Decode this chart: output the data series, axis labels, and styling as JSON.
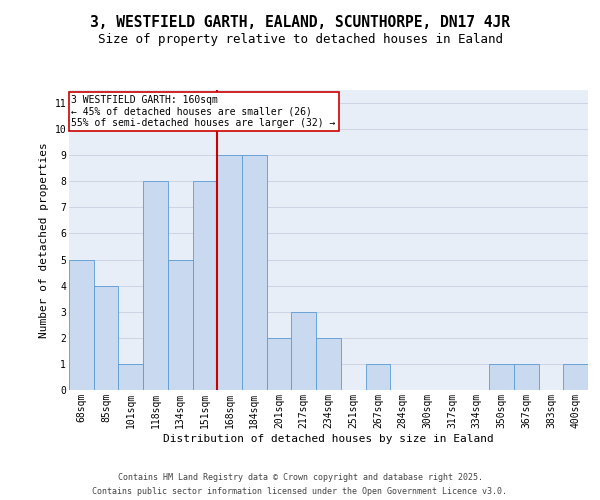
{
  "title1": "3, WESTFIELD GARTH, EALAND, SCUNTHORPE, DN17 4JR",
  "title2": "Size of property relative to detached houses in Ealand",
  "xlabel": "Distribution of detached houses by size in Ealand",
  "ylabel": "Number of detached properties",
  "categories": [
    "68sqm",
    "85sqm",
    "101sqm",
    "118sqm",
    "134sqm",
    "151sqm",
    "168sqm",
    "184sqm",
    "201sqm",
    "217sqm",
    "234sqm",
    "251sqm",
    "267sqm",
    "284sqm",
    "300sqm",
    "317sqm",
    "334sqm",
    "350sqm",
    "367sqm",
    "383sqm",
    "400sqm"
  ],
  "values": [
    5,
    4,
    1,
    8,
    5,
    8,
    9,
    9,
    2,
    3,
    2,
    0,
    1,
    0,
    0,
    0,
    0,
    1,
    1,
    0,
    1
  ],
  "bar_color": "#c9d9f0",
  "bar_edge_color": "#5b9bd5",
  "ref_line_color": "#cc0000",
  "box_edge_color": "#cc0000",
  "bg_color": "#e8eef8",
  "grid_color": "#c8d0e0",
  "annotation_label": "3 WESTFIELD GARTH: 160sqm",
  "annotation_line1": "← 45% of detached houses are smaller (26)",
  "annotation_line2": "55% of semi-detached houses are larger (32) →",
  "footer1": "Contains HM Land Registry data © Crown copyright and database right 2025.",
  "footer2": "Contains public sector information licensed under the Open Government Licence v3.0.",
  "ylim": [
    0,
    11.5
  ],
  "yticks": [
    0,
    1,
    2,
    3,
    4,
    5,
    6,
    7,
    8,
    9,
    10,
    11
  ],
  "title1_fontsize": 10.5,
  "title2_fontsize": 9,
  "ylabel_fontsize": 8,
  "xlabel_fontsize": 8,
  "tick_fontsize": 7,
  "annot_fontsize": 7,
  "footer_fontsize": 6
}
